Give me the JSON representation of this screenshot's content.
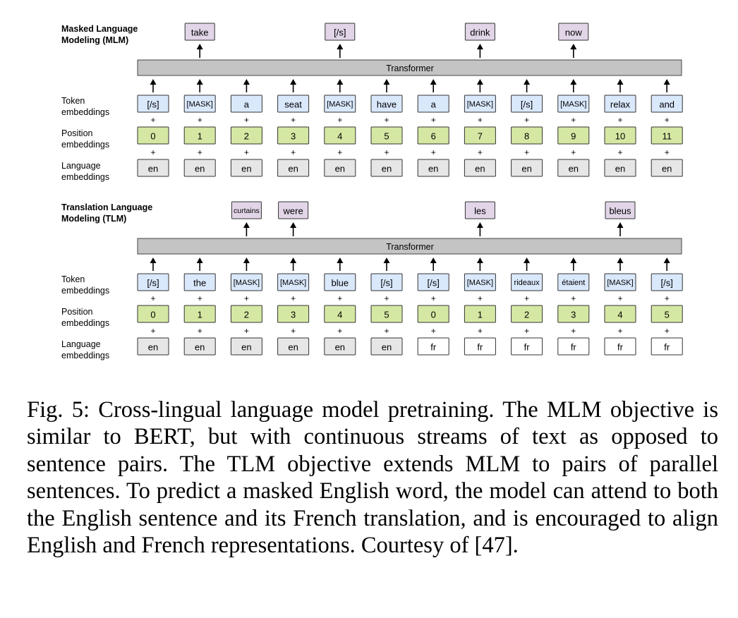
{
  "colors": {
    "token": "#dae8fc",
    "position": "#d5e8a3",
    "language_en": "#e6e6e6",
    "language_fr": "#ffffff",
    "prediction": "#e1d5e7",
    "transformer": "#c4c4c4",
    "stroke": "#000000"
  },
  "panels": [
    {
      "id": "mlm",
      "title_line1": "Masked Language",
      "title_line2": "Modeling (MLM)",
      "transformer_label": "Transformer",
      "predictions": [
        {
          "col": 1,
          "text": "take"
        },
        {
          "col": 4,
          "text": "[/s]"
        },
        {
          "col": 7,
          "text": "drink"
        },
        {
          "col": 9,
          "text": "now"
        }
      ],
      "rows": [
        {
          "kind": "token",
          "label_line1": "Token",
          "label_line2": "embeddings",
          "cells": [
            "[/s]",
            "[MASK]",
            "a",
            "seat",
            "[MASK]",
            "have",
            "a",
            "[MASK]",
            "[/s]",
            "[MASK]",
            "relax",
            "and"
          ]
        },
        {
          "kind": "position",
          "label_line1": "Position",
          "label_line2": "embeddings",
          "cells": [
            "0",
            "1",
            "2",
            "3",
            "4",
            "5",
            "6",
            "7",
            "8",
            "9",
            "10",
            "11"
          ]
        },
        {
          "kind": "language",
          "label_line1": "Language",
          "label_line2": "embeddings",
          "cells": [
            "en",
            "en",
            "en",
            "en",
            "en",
            "en",
            "en",
            "en",
            "en",
            "en",
            "en",
            "en"
          ]
        }
      ]
    },
    {
      "id": "tlm",
      "title_line1": "Translation Language",
      "title_line2": "Modeling (TLM)",
      "transformer_label": "Transformer",
      "predictions": [
        {
          "col": 2,
          "text": "curtains"
        },
        {
          "col": 3,
          "text": "were"
        },
        {
          "col": 7,
          "text": "les"
        },
        {
          "col": 10,
          "text": "bleus"
        }
      ],
      "rows": [
        {
          "kind": "token",
          "label_line1": "Token",
          "label_line2": "embeddings",
          "cells": [
            "[/s]",
            "the",
            "[MASK]",
            "[MASK]",
            "blue",
            "[/s]",
            "[/s]",
            "[MASK]",
            "rideaux",
            "étaient",
            "[MASK]",
            "[/s]"
          ]
        },
        {
          "kind": "position",
          "label_line1": "Position",
          "label_line2": "embeddings",
          "cells": [
            "0",
            "1",
            "2",
            "3",
            "4",
            "5",
            "0",
            "1",
            "2",
            "3",
            "4",
            "5"
          ]
        },
        {
          "kind": "language",
          "label_line1": "Language",
          "label_line2": "embeddings",
          "cells": [
            "en",
            "en",
            "en",
            "en",
            "en",
            "en",
            "fr",
            "fr",
            "fr",
            "fr",
            "fr",
            "fr"
          ]
        }
      ]
    }
  ],
  "plus_sign": "+",
  "caption": "Fig. 5: Cross-lingual language model pretraining. The MLM objective is similar to BERT, but with continuous streams of text as opposed to sentence pairs. The TLM objective extends MLM to pairs of parallel sentences. To predict a masked English word, the model can attend to both the English sentence and its French translation, and is encouraged to align English and French representations. Courtesy of [47]."
}
